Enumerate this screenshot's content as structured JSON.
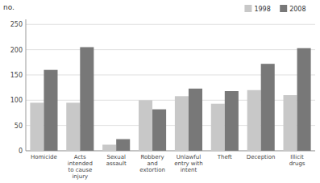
{
  "chart_data": {
    "type": "bar",
    "ylabel": "no.",
    "categories": [
      "Homicide",
      "Acts\nintended\nto cause\ninjury",
      "Sexual\nassault",
      "Robbery\nand\nextortion",
      "Unlawful\nentry with\nintent",
      "Theft",
      "Deception",
      "Illicit\ndrugs"
    ],
    "series": [
      {
        "name": "1998",
        "color": "#c8c8c8",
        "values": [
          95,
          95,
          12,
          100,
          108,
          93,
          120,
          110
        ]
      },
      {
        "name": "2008",
        "color": "#787878",
        "values": [
          160,
          205,
          23,
          82,
          123,
          118,
          172,
          203
        ]
      }
    ],
    "ylim": [
      0,
      260
    ],
    "yticks": [
      0,
      50,
      100,
      150,
      200,
      250
    ],
    "grid": true,
    "legend": "upper right"
  }
}
